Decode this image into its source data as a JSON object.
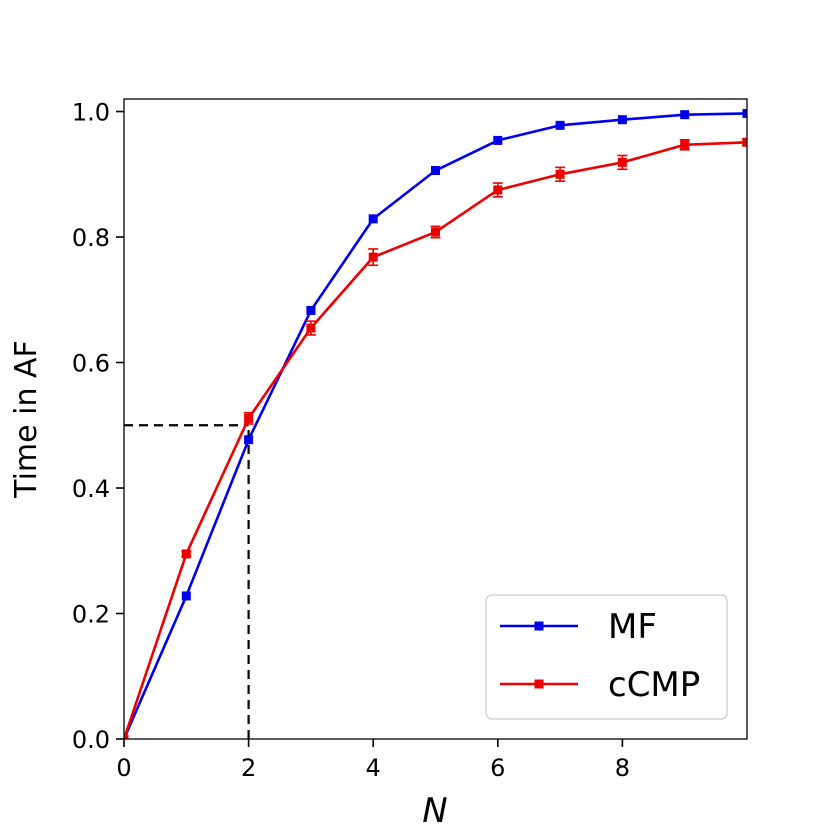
{
  "chart_data": {
    "type": "line",
    "title": "",
    "xlabel": "N",
    "ylabel": "Time in AF",
    "xlim": [
      0,
      10
    ],
    "ylim": [
      0,
      1.02
    ],
    "xticks": [
      0,
      2,
      4,
      6,
      8
    ],
    "yticks": [
      0.0,
      0.2,
      0.4,
      0.6,
      0.8,
      1.0
    ],
    "xtick_labels": [
      "0",
      "2",
      "4",
      "6",
      "8"
    ],
    "ytick_labels": [
      "0.0",
      "0.2",
      "0.4",
      "0.6",
      "0.8",
      "1.0"
    ],
    "grid": false,
    "legend_position": "bottom-right",
    "series": [
      {
        "name": "MF",
        "color": "#0000ee",
        "marker": "square",
        "x": [
          0,
          1,
          2,
          3,
          4,
          5,
          6,
          7,
          8,
          9,
          10
        ],
        "values": [
          0.0,
          0.228,
          0.477,
          0.683,
          0.829,
          0.906,
          0.954,
          0.978,
          0.987,
          0.995,
          0.997
        ]
      },
      {
        "name": "cCMP",
        "color": "#ee0000",
        "marker": "square",
        "x": [
          0,
          1,
          2,
          3,
          4,
          5,
          6,
          7,
          8,
          9,
          10
        ],
        "values": [
          0.0,
          0.295,
          0.511,
          0.655,
          0.768,
          0.808,
          0.875,
          0.9,
          0.919,
          0.947,
          0.951
        ],
        "errors": [
          0.0,
          0.004,
          0.009,
          0.011,
          0.013,
          0.009,
          0.011,
          0.011,
          0.011,
          0.008,
          0.005
        ]
      }
    ],
    "reference_lines": [
      {
        "type": "horizontal",
        "y": 0.5,
        "x_from": 0,
        "x_to": 2,
        "style": "dashed",
        "color": "#000000"
      },
      {
        "type": "vertical",
        "x": 2,
        "y_from": 0,
        "y_to": 0.5,
        "style": "dashed",
        "color": "#000000"
      }
    ]
  }
}
